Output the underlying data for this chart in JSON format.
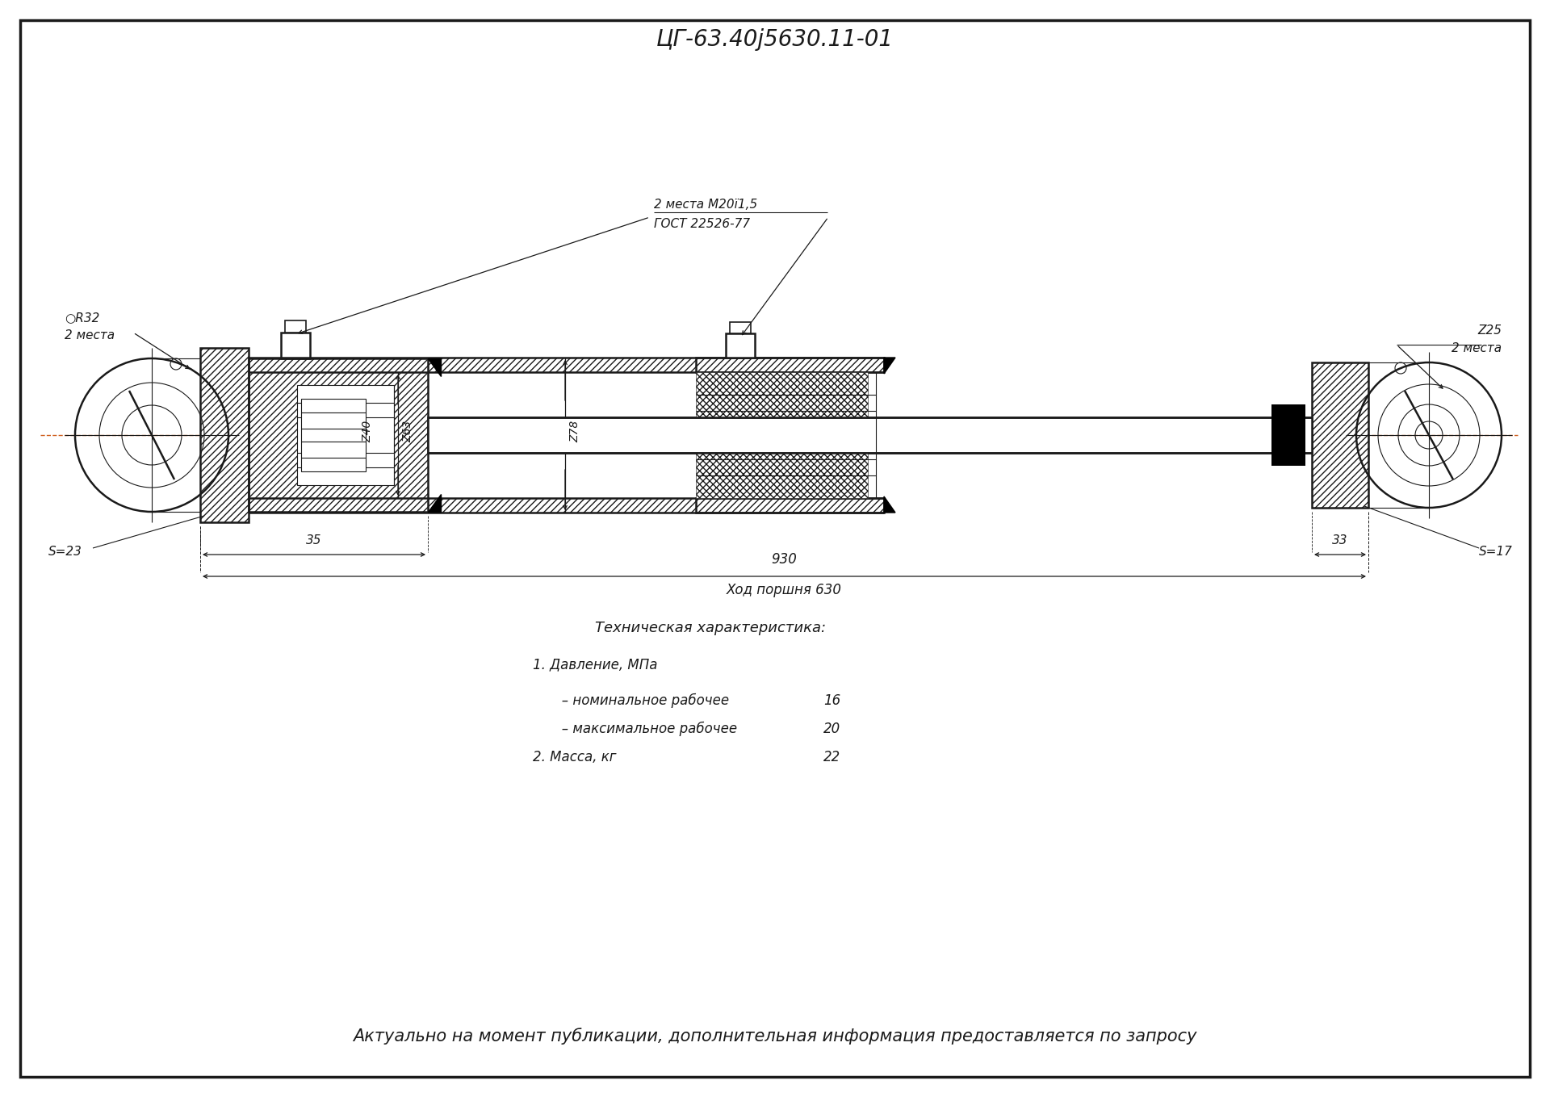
{
  "title": "ЦГ-63.40ј5630.11-01",
  "bg_color": "#ffffff",
  "line_color": "#1a1a1a",
  "center_line_color": "#d06020",
  "title_fontsize": 20,
  "footer_fontsize": 15,
  "tech_title": "Техническая характеристика:",
  "tech_line1": "1. Давление, МПа",
  "tech_line2": "   – номинальное рабочее",
  "tech_val2": "16",
  "tech_line3": "   – максимальное рабочее",
  "tech_val3": "20",
  "tech_line4": "2. Масса, кг",
  "tech_val4": "22",
  "footer_text": "Актуально на момент публикации, дополнительная информация предоставляется по запросу",
  "note_m20": "2 места М20ї1,5",
  "note_gost": "ГОСТ 22526-77",
  "dim_930": "930",
  "dim_stroke": "Ход поршня 630",
  "dim_35": "35",
  "dim_33": "33",
  "dim_phi40": "Ζ40",
  "dim_phi63": "Ζ63",
  "dim_phi78": "Ζ78",
  "dim_phi25": "Ζ25",
  "dim_R32": "○R32",
  "dim_2mesta_L": "2 места",
  "dim_2mesta_R": "2 места",
  "dim_S23": "S=23",
  "dim_S17": "S=17"
}
